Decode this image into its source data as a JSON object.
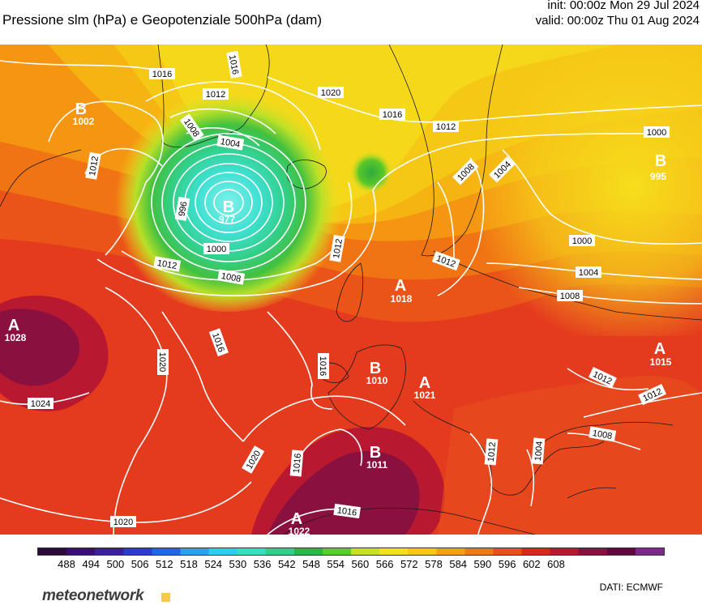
{
  "header": {
    "title": "Pressione slm (hPa) e Geopotenziale 500hPa (dam)",
    "init": "init: 00:00z Mon 29 Jul 2024",
    "valid": "valid: 00:00z Thu 01 Aug 2024"
  },
  "colorbar": {
    "ticks": [
      "488",
      "494",
      "500",
      "506",
      "512",
      "518",
      "524",
      "530",
      "536",
      "542",
      "548",
      "554",
      "560",
      "566",
      "572",
      "578",
      "584",
      "590",
      "596",
      "602",
      "608"
    ],
    "colors": [
      "#2b0a3d",
      "#3b0f6f",
      "#3a1fa0",
      "#2c3ad0",
      "#2464e8",
      "#2aa0f0",
      "#2ad0e8",
      "#35e0c0",
      "#2ed08a",
      "#27b84a",
      "#5ccc28",
      "#c8e020",
      "#f3e21a",
      "#f7c812",
      "#f5a010",
      "#f07a12",
      "#e8501a",
      "#d8281e",
      "#b81830",
      "#8a1040",
      "#5e0a40",
      "#7a2a8a"
    ]
  },
  "isobar_labels": [
    "1016",
    "1012",
    "1008",
    "1004",
    "1000",
    "996",
    "1020",
    "1024"
  ],
  "pressure_centers": [
    {
      "letter": "B",
      "value": "977"
    },
    {
      "letter": "B",
      "value": "995"
    },
    {
      "letter": "A",
      "value": "1028"
    },
    {
      "letter": "A",
      "value": "1018"
    },
    {
      "letter": "B",
      "value": "1010"
    },
    {
      "letter": "A",
      "value": "1021"
    },
    {
      "letter": "B",
      "value": "1011"
    },
    {
      "letter": "A",
      "value": "1015"
    },
    {
      "letter": "B",
      "value": "1002"
    },
    {
      "letter": "A",
      "value": "1022"
    }
  ],
  "footer": {
    "brand": "meteonetwork",
    "credits": "DATI:  ECMWF"
  }
}
